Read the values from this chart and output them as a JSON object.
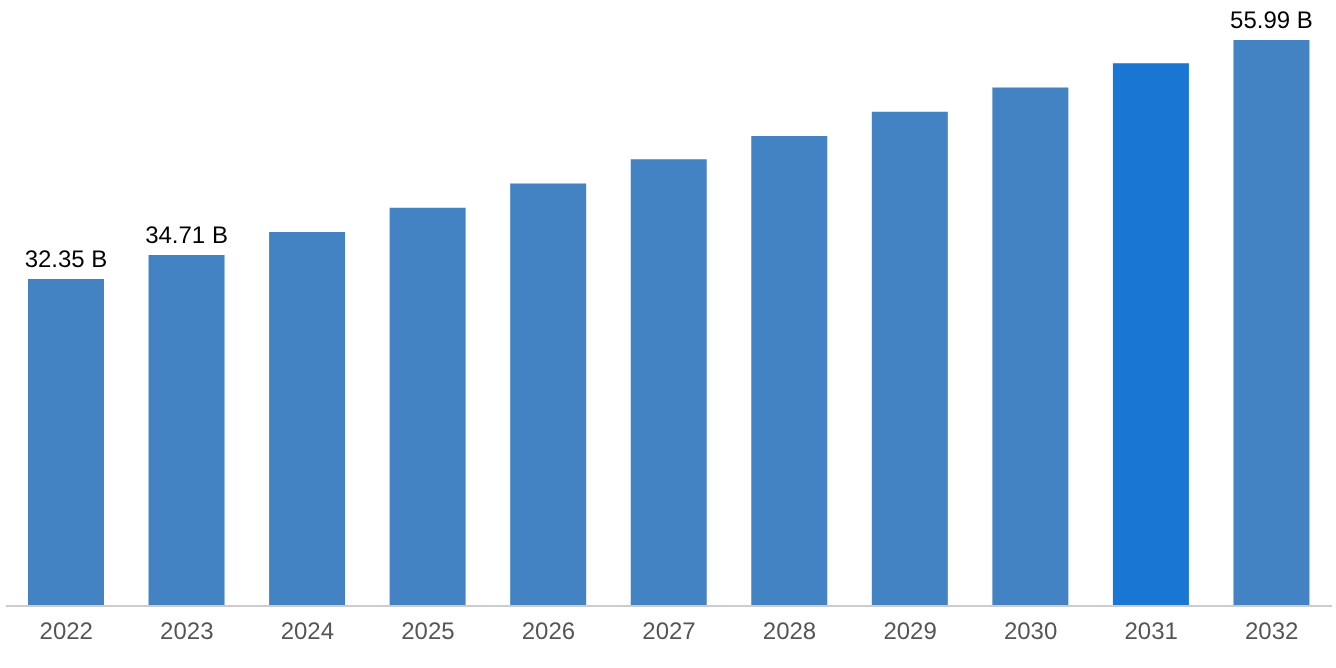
{
  "chart_data": {
    "type": "bar",
    "categories": [
      "2022",
      "2023",
      "2024",
      "2025",
      "2026",
      "2027",
      "2028",
      "2029",
      "2030",
      "2031",
      "2032"
    ],
    "values": [
      32.35,
      34.71,
      37.0,
      39.4,
      41.8,
      44.2,
      46.5,
      48.9,
      51.3,
      53.7,
      55.99
    ],
    "colors": [
      "#4383c4",
      "#4383c4",
      "#4383c4",
      "#4383c4",
      "#4383c4",
      "#4383c4",
      "#4383c4",
      "#4383c4",
      "#4383c4",
      "#1976d2",
      "#4383c4"
    ],
    "value_labels": [
      "32.35 B",
      "34.71 B",
      null,
      null,
      null,
      null,
      null,
      null,
      null,
      null,
      "55.99 B"
    ],
    "grid": false,
    "legend": false
  }
}
